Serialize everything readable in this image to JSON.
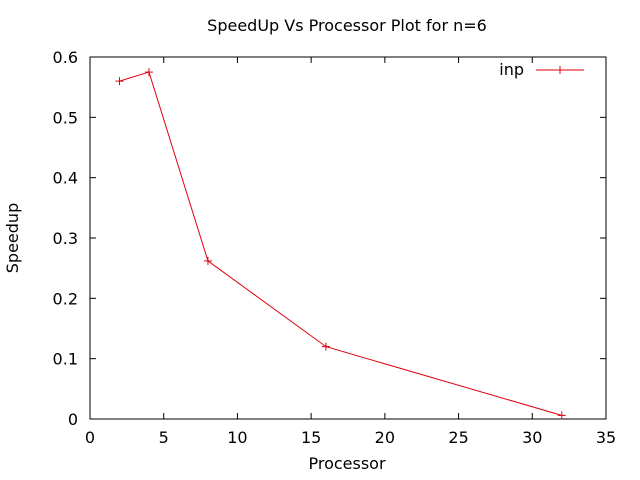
{
  "chart_data": {
    "type": "line",
    "title": "SpeedUp Vs Processor Plot for n=6",
    "xlabel": "Processor",
    "ylabel": "Speedup",
    "xlim": [
      0,
      35
    ],
    "ylim": [
      0,
      0.6
    ],
    "xticks": [
      0,
      5,
      10,
      15,
      20,
      25,
      30,
      35
    ],
    "xtick_labels": [
      "0",
      "5",
      "10",
      "15",
      "20",
      "25",
      "30",
      "35"
    ],
    "yticks": [
      0,
      0.1,
      0.2,
      0.3,
      0.4,
      0.5,
      0.6
    ],
    "ytick_labels": [
      "0",
      "0.1",
      "0.2",
      "0.3",
      "0.4",
      "0.5",
      "0.6"
    ],
    "grid": false,
    "legend_position": "top-right",
    "series": [
      {
        "name": "inp",
        "color": "#e0000d",
        "marker": "plus",
        "x": [
          2,
          4,
          8,
          16,
          32
        ],
        "y": [
          0.56,
          0.575,
          0.262,
          0.12,
          0.006
        ]
      }
    ]
  }
}
